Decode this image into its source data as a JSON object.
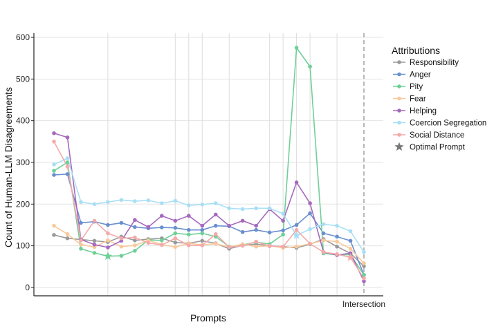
{
  "chart_data": {
    "type": "line",
    "xlabel": "Prompts",
    "ylabel": "Count of Human-LLM Disagreements",
    "ylim": [
      -20,
      610
    ],
    "yticks": [
      0,
      100,
      200,
      300,
      400,
      500,
      600
    ],
    "x_tick_labels": [
      {
        "index": 23,
        "label": "Intersection"
      }
    ],
    "legend": {
      "title": "Attributions",
      "position": "right",
      "optimal_label": "Optimal Prompt"
    },
    "grid": true,
    "vertical_gridlines_at": [
      4,
      9,
      10,
      11,
      13,
      16,
      17,
      18,
      19,
      21
    ],
    "intersection_index": 23,
    "n_points": 24,
    "series": [
      {
        "name": "Responsibility",
        "color": "#999999",
        "values": [
          126,
          118,
          115,
          112,
          109,
          122,
          113,
          116,
          118,
          108,
          106,
          112,
          106,
          93,
          101,
          104,
          100,
          98,
          95,
          104,
          116,
          98,
          82,
          51
        ],
        "optimal_index": null
      },
      {
        "name": "Anger",
        "color": "#6a8fcf",
        "values": [
          270,
          272,
          155,
          158,
          150,
          155,
          145,
          142,
          144,
          143,
          138,
          138,
          148,
          147,
          133,
          138,
          132,
          137,
          150,
          178,
          130,
          122,
          112,
          30
        ],
        "optimal_index": null
      },
      {
        "name": "Pity",
        "color": "#6fcf97",
        "values": [
          280,
          300,
          93,
          83,
          75,
          76,
          88,
          114,
          113,
          130,
          127,
          130,
          122,
          98,
          102,
          109,
          104,
          127,
          575,
          530,
          82,
          78,
          79,
          30
        ],
        "optimal_index": 4
      },
      {
        "name": "Fear",
        "color": "#f8c99a",
        "values": [
          148,
          128,
          103,
          97,
          113,
          98,
          101,
          113,
          103,
          97,
          106,
          102,
          105,
          97,
          104,
          98,
          100,
          95,
          98,
          105,
          113,
          110,
          93,
          58
        ],
        "optimal_index": null
      },
      {
        "name": "Helping",
        "color": "#a569bd",
        "values": [
          370,
          360,
          115,
          103,
          96,
          112,
          162,
          145,
          172,
          160,
          172,
          148,
          175,
          148,
          160,
          148,
          188,
          160,
          252,
          202,
          85,
          78,
          82,
          15
        ],
        "optimal_index": null
      },
      {
        "name": "Coercion Segregation",
        "color": "#a9dff5",
        "values": [
          295,
          310,
          205,
          200,
          205,
          210,
          207,
          209,
          202,
          208,
          197,
          199,
          202,
          190,
          188,
          190,
          190,
          177,
          125,
          140,
          152,
          148,
          135,
          85
        ],
        "optimal_index": 18
      },
      {
        "name": "Social Distance",
        "color": "#f5a9a9",
        "values": [
          350,
          290,
          113,
          160,
          130,
          118,
          120,
          107,
          102,
          118,
          101,
          101,
          128,
          97,
          100,
          110,
          99,
          98,
          138,
          105,
          85,
          80,
          72,
          22
        ],
        "optimal_index": 22
      }
    ]
  }
}
